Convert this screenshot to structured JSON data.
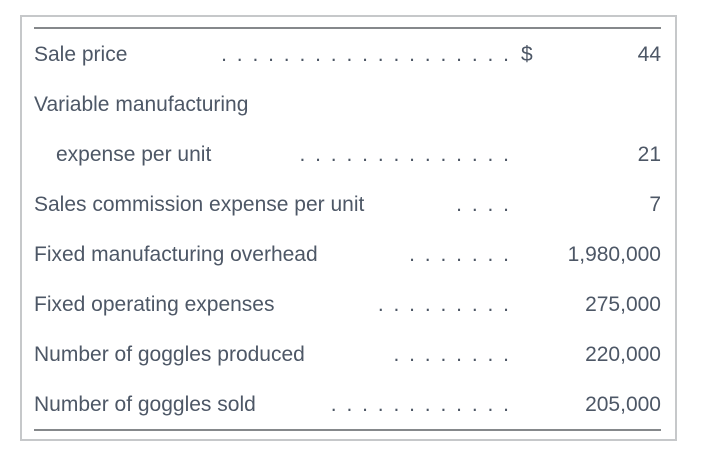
{
  "page": {
    "background_color": "#ffffff"
  },
  "table": {
    "border_color": "#c6c8ca",
    "rule_color": "#85888b",
    "text_color": "#4d5766",
    "rows": [
      {
        "label": "Sale price",
        "indent": false,
        "dots": ". . . . . . . . . . . . . . . . . . .",
        "currency": "$",
        "value": "44"
      },
      {
        "label": "Variable manufacturing",
        "indent": false,
        "dots": "",
        "currency": "",
        "value": ""
      },
      {
        "label": "expense per unit",
        "indent": true,
        "dots": ". . . . . . . . . . . . . .",
        "currency": "",
        "value": "21"
      },
      {
        "label": "Sales commission expense per unit",
        "indent": false,
        "dots": ". . . .",
        "currency": "",
        "value": "7"
      },
      {
        "label": "Fixed manufacturing overhead",
        "indent": false,
        "dots": ". . . . . . .",
        "currency": "",
        "value": "1,980,000"
      },
      {
        "label": "Fixed operating expenses",
        "indent": false,
        "dots": ". . . . . . . . .",
        "currency": "",
        "value": "275,000"
      },
      {
        "label": "Number of goggles produced",
        "indent": false,
        "dots": ". . . . . . . .",
        "currency": "",
        "value": "220,000"
      },
      {
        "label": "Number of goggles sold",
        "indent": false,
        "dots": ". . . . . . . . . . . .",
        "currency": "",
        "value": "205,000"
      }
    ]
  }
}
